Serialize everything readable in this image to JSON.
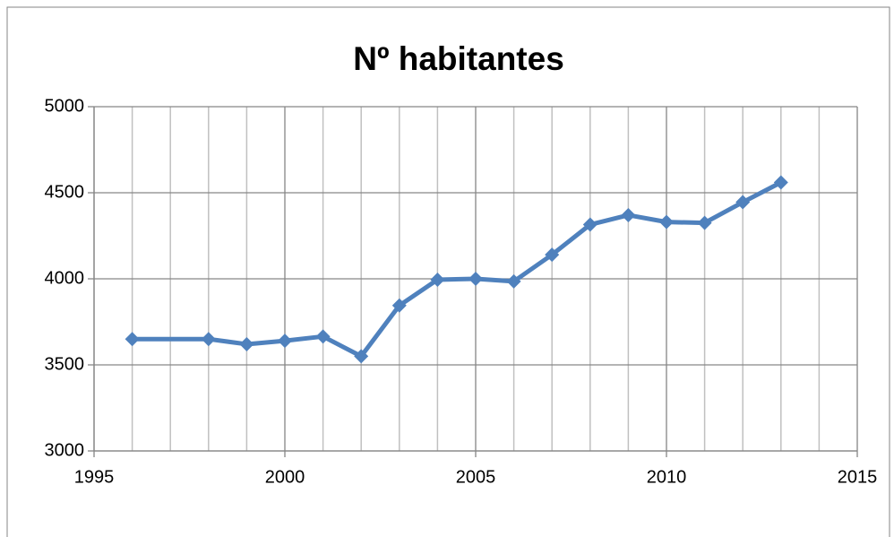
{
  "chart_data": {
    "type": "line",
    "title": "Nº habitantes",
    "x": [
      1996,
      1998,
      1999,
      2000,
      2001,
      2002,
      2003,
      2004,
      2005,
      2006,
      2007,
      2008,
      2009,
      2010,
      2011,
      2012,
      2013
    ],
    "series": [
      {
        "name": "Nº habitantes",
        "color": "#4f81bd",
        "values": [
          3650,
          3650,
          3620,
          3640,
          3665,
          3550,
          3845,
          3995,
          4000,
          3985,
          4140,
          4315,
          4370,
          4330,
          4325,
          4445,
          4560
        ]
      }
    ],
    "xlim": [
      1995,
      2015
    ],
    "xticks": [
      1995,
      2000,
      2005,
      2010,
      2015
    ],
    "xminorticks": [
      1996,
      1997,
      1998,
      1999,
      2001,
      2002,
      2003,
      2004,
      2006,
      2007,
      2008,
      2009,
      2011,
      2012,
      2013,
      2014
    ],
    "ylim": [
      3000,
      5000
    ],
    "yticks": [
      3000,
      3500,
      4000,
      4500,
      5000
    ],
    "grid": true,
    "legend": false
  }
}
